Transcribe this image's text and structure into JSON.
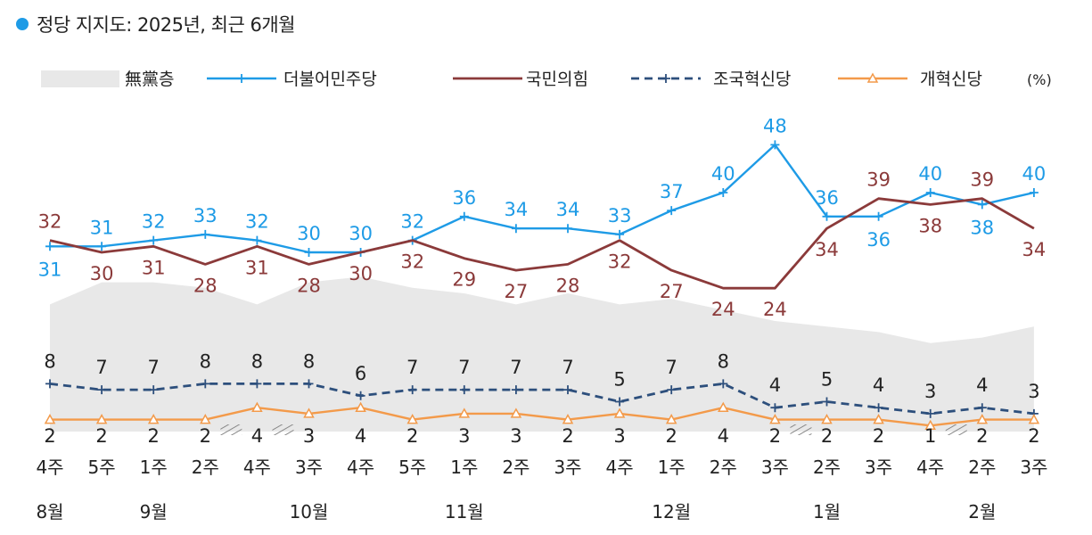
{
  "title": "정당 지지도: 2025년, 최근 6개월",
  "colors": {
    "title_dot": "#1e9be6",
    "none": "#e8e8e8",
    "dem": "#1e9be6",
    "ppp": "#8b3a3a",
    "rebuild": "#2d4f7c",
    "reform": "#f39a4a",
    "hatch": "#888888",
    "text": "#222222"
  },
  "legend": [
    {
      "key": "none",
      "label": "無黨층"
    },
    {
      "key": "dem",
      "label": "더불어민주당"
    },
    {
      "key": "ppp",
      "label": "국민의힘"
    },
    {
      "key": "rebuild",
      "label": "조국혁신당"
    },
    {
      "key": "reform",
      "label": "개혁신당"
    }
  ],
  "unit": "(%)",
  "chart_data": {
    "type": "line",
    "categories": [
      "4주",
      "5주",
      "1주",
      "2주",
      "4주",
      "3주",
      "4주",
      "5주",
      "1주",
      "2주",
      "3주",
      "4주",
      "1주",
      "2주",
      "3주",
      "2주",
      "3주",
      "4주",
      "2주",
      "3주"
    ],
    "months": [
      {
        "label": "8월",
        "index": 0
      },
      {
        "label": "9월",
        "index": 2
      },
      {
        "label": "10월",
        "index": 5
      },
      {
        "label": "11월",
        "index": 8
      },
      {
        "label": "12월",
        "index": 12
      },
      {
        "label": "1월",
        "index": 15
      },
      {
        "label": "2월",
        "index": 18
      }
    ],
    "gaps_after": [
      3,
      4,
      14,
      17
    ],
    "series": [
      {
        "key": "dem",
        "name": "더불어민주당",
        "values": [
          31,
          31,
          32,
          33,
          32,
          30,
          30,
          32,
          36,
          34,
          34,
          33,
          37,
          40,
          48,
          36,
          36,
          40,
          38,
          40
        ]
      },
      {
        "key": "ppp",
        "name": "국민의힘",
        "values": [
          32,
          30,
          31,
          28,
          31,
          28,
          30,
          32,
          29,
          27,
          28,
          32,
          27,
          24,
          24,
          34,
          39,
          38,
          39,
          34
        ]
      },
      {
        "key": "rebuild",
        "name": "조국혁신당",
        "values": [
          8,
          7,
          7,
          8,
          8,
          8,
          6,
          7,
          7,
          7,
          7,
          5,
          7,
          8,
          4,
          5,
          4,
          3,
          4,
          3
        ]
      },
      {
        "key": "reform",
        "name": "개혁신당",
        "values": [
          2,
          2,
          2,
          2,
          4,
          3,
          4,
          2,
          3,
          3,
          2,
          3,
          2,
          4,
          2,
          2,
          2,
          1,
          2,
          2
        ]
      }
    ],
    "none_area": [
      23,
      27,
      27,
      26,
      23,
      27,
      28,
      26,
      25,
      23,
      25,
      23,
      24,
      22,
      20,
      19,
      18,
      16,
      17,
      19
    ],
    "ylim": [
      0,
      50
    ]
  }
}
